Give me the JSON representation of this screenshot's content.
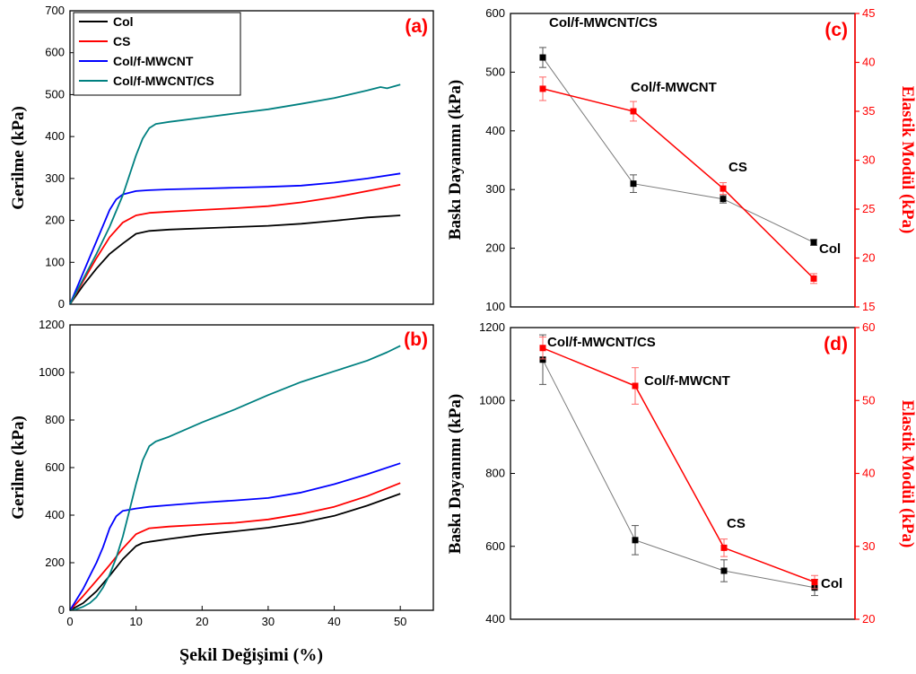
{
  "colors": {
    "Col": "#000000",
    "CS": "#ff0000",
    "Col/f-MWCNT": "#0000ff",
    "Col/f-MWCNT/CS": "#008080",
    "gray_line": "#7a7a7a",
    "red_axis": "#ff0000"
  },
  "figure": {
    "shared_xlabel": "Şekil Değişimi (%)"
  },
  "chart_data": [
    {
      "id": "a",
      "panel_label": "(a)",
      "type": "line",
      "ylabel": "Gerilme (kPa)",
      "xlabel": "",
      "xlim": [
        0,
        55
      ],
      "ylim": [
        0,
        700
      ],
      "xticks": [],
      "yticks": [
        0,
        100,
        200,
        300,
        400,
        500,
        600,
        700
      ],
      "legend": {
        "position": "top-left",
        "entries": [
          "Col",
          "CS",
          "Col/f-MWCNT",
          "Col/f-MWCNT/CS"
        ]
      },
      "series": [
        {
          "name": "Col",
          "x": [
            0,
            2,
            4,
            6,
            8,
            10,
            12,
            15,
            20,
            25,
            30,
            35,
            40,
            45,
            50
          ],
          "y": [
            0,
            45,
            85,
            120,
            145,
            168,
            175,
            178,
            181,
            184,
            187,
            192,
            199,
            207,
            212
          ]
        },
        {
          "name": "CS",
          "x": [
            0,
            2,
            4,
            6,
            8,
            10,
            12,
            15,
            20,
            25,
            30,
            35,
            40,
            45,
            50
          ],
          "y": [
            0,
            55,
            110,
            160,
            195,
            212,
            218,
            221,
            225,
            229,
            234,
            243,
            255,
            270,
            285
          ]
        },
        {
          "name": "Col/f-MWCNT",
          "x": [
            0,
            2,
            4,
            6,
            7,
            8,
            10,
            12,
            15,
            20,
            25,
            30,
            35,
            40,
            45,
            50
          ],
          "y": [
            0,
            75,
            150,
            225,
            250,
            262,
            270,
            272,
            274,
            276,
            278,
            280,
            283,
            290,
            300,
            312
          ]
        },
        {
          "name": "Col/f-MWCNT/CS",
          "x": [
            0,
            2,
            4,
            6,
            8,
            10,
            11,
            12,
            13,
            15,
            20,
            25,
            30,
            35,
            40,
            45,
            47,
            48,
            50
          ],
          "y": [
            0,
            60,
            120,
            185,
            260,
            355,
            395,
            420,
            430,
            435,
            445,
            455,
            465,
            478,
            492,
            510,
            518,
            515,
            524
          ]
        }
      ]
    },
    {
      "id": "b",
      "panel_label": "(b)",
      "type": "line",
      "ylabel": "Gerilme (kPa)",
      "xlabel": "Şekil Değişimi (%)",
      "xlim": [
        0,
        55
      ],
      "ylim": [
        0,
        1200
      ],
      "xticks": [
        0,
        10,
        20,
        30,
        40,
        50
      ],
      "yticks": [
        0,
        200,
        400,
        600,
        800,
        1000,
        1200
      ],
      "series": [
        {
          "name": "Col",
          "x": [
            0,
            2,
            4,
            6,
            8,
            10,
            11,
            12,
            15,
            20,
            25,
            30,
            35,
            40,
            45,
            50
          ],
          "y": [
            0,
            30,
            80,
            145,
            215,
            270,
            283,
            288,
            300,
            318,
            332,
            347,
            368,
            397,
            440,
            490
          ]
        },
        {
          "name": "CS",
          "x": [
            0,
            2,
            4,
            6,
            8,
            10,
            12,
            15,
            20,
            25,
            30,
            35,
            40,
            45,
            50
          ],
          "y": [
            0,
            60,
            125,
            190,
            260,
            320,
            345,
            352,
            360,
            368,
            382,
            405,
            435,
            480,
            535
          ]
        },
        {
          "name": "Col/f-MWCNT",
          "x": [
            0,
            2,
            4,
            5,
            6,
            7,
            8,
            10,
            12,
            15,
            20,
            25,
            30,
            35,
            40,
            45,
            50
          ],
          "y": [
            0,
            90,
            200,
            265,
            345,
            395,
            418,
            428,
            435,
            442,
            453,
            462,
            472,
            495,
            530,
            572,
            618
          ]
        },
        {
          "name": "Col/f-MWCNT/CS",
          "x": [
            0,
            1,
            2,
            3,
            4,
            5,
            6,
            7,
            8,
            9,
            10,
            11,
            12,
            13,
            15,
            20,
            25,
            30,
            35,
            40,
            45,
            48,
            50
          ],
          "y": [
            0,
            5,
            15,
            30,
            55,
            95,
            150,
            220,
            310,
            420,
            530,
            630,
            690,
            710,
            730,
            790,
            845,
            905,
            960,
            1005,
            1050,
            1085,
            1112
          ]
        }
      ]
    },
    {
      "id": "c",
      "panel_label": "(c)",
      "type": "scatter",
      "xlabel": "",
      "ylabel": "Baskı Dayanımı (kPa)",
      "ylim": [
        100,
        600
      ],
      "yticks": [
        100,
        200,
        300,
        400,
        500,
        600
      ],
      "y2label": "Elastik Modül (kPa)",
      "y2lim": [
        15,
        45
      ],
      "y2ticks": [
        15,
        20,
        25,
        30,
        35,
        40,
        45
      ],
      "categories": [
        "Col/f-MWCNT/CS",
        "Col/f-MWCNT",
        "CS",
        "Col"
      ],
      "series": [
        {
          "axis": "left",
          "values": [
            525,
            310,
            284,
            210
          ],
          "errors": [
            17,
            15,
            7,
            5
          ]
        },
        {
          "axis": "right",
          "values": [
            37.3,
            35.0,
            27.1,
            17.9
          ],
          "errors": [
            1.2,
            1.0,
            0.6,
            0.5
          ]
        }
      ]
    },
    {
      "id": "d",
      "panel_label": "(d)",
      "type": "scatter",
      "xlabel": "",
      "ylabel": "Baskı Dayanımı (kPa)",
      "ylim": [
        400,
        1200
      ],
      "yticks": [
        400,
        600,
        800,
        1000,
        1200
      ],
      "y2label": "Elastik Modül (kPa)",
      "y2lim": [
        20,
        60
      ],
      "y2ticks": [
        20,
        30,
        40,
        50,
        60
      ],
      "categories": [
        "Col/f-MWCNT/CS",
        "Col/f-MWCNT",
        "CS",
        "Col"
      ],
      "series": [
        {
          "axis": "left",
          "values": [
            1112,
            617,
            533,
            487
          ],
          "errors": [
            68,
            40,
            30,
            22
          ]
        },
        {
          "axis": "right",
          "values": [
            57.2,
            52.0,
            29.8,
            25.1
          ],
          "errors": [
            1.5,
            2.5,
            1.2,
            0.9
          ]
        }
      ]
    }
  ]
}
